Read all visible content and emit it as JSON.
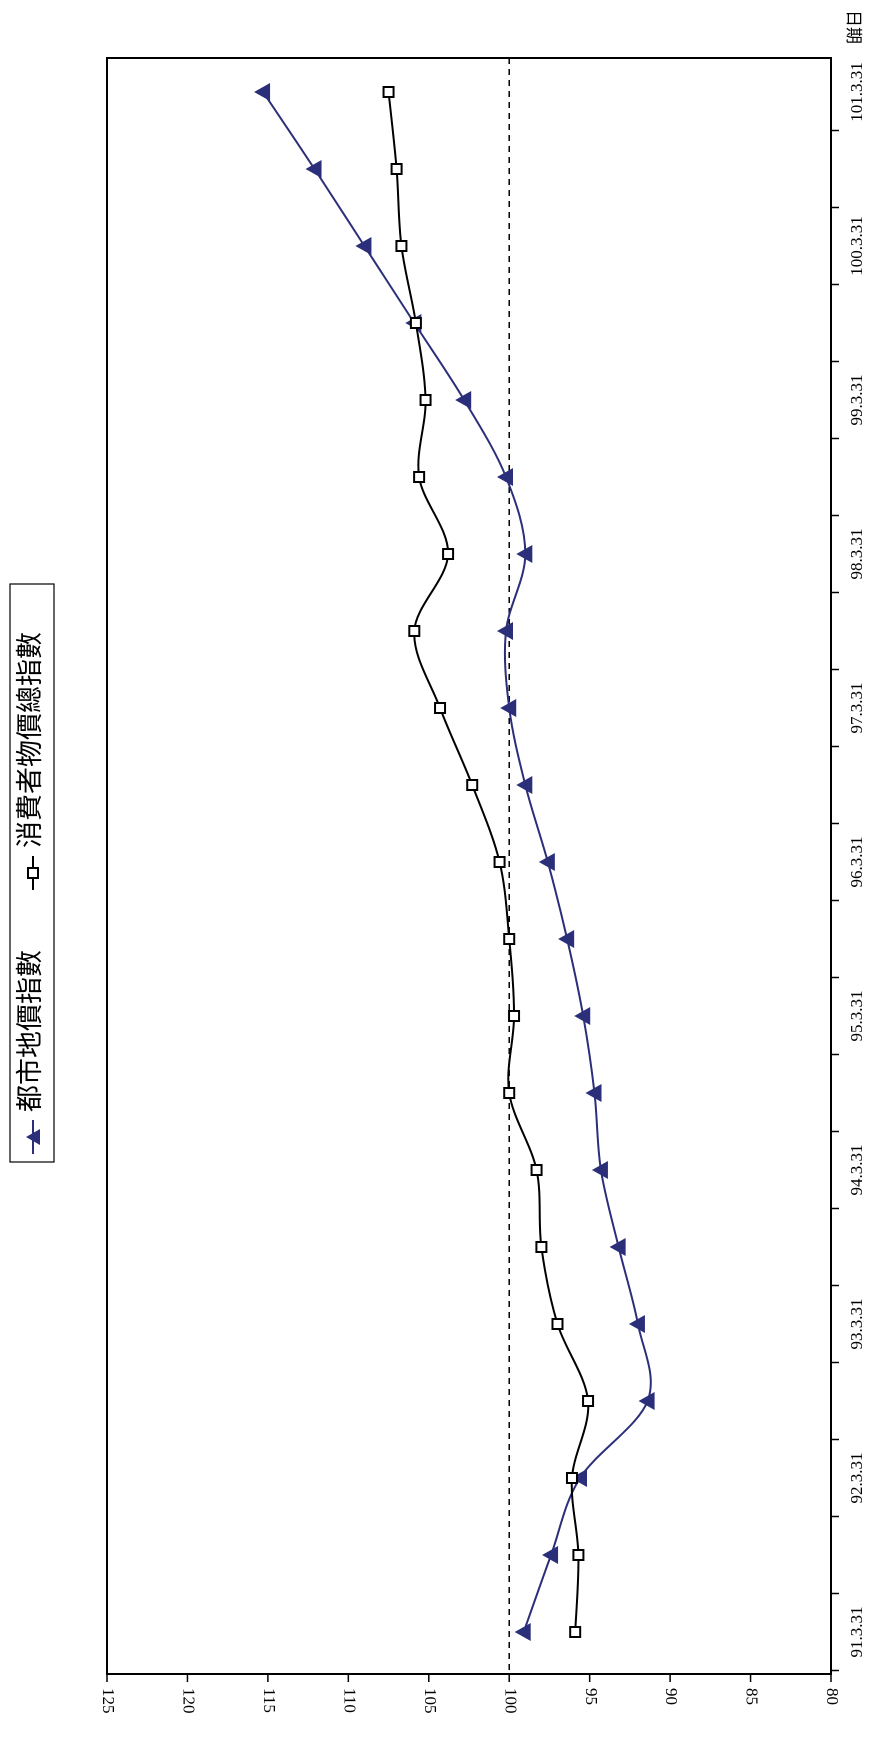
{
  "chart_data": {
    "type": "line",
    "title": "",
    "xlabel": "日期",
    "ylabel": "",
    "ylim": [
      80,
      125
    ],
    "yticks": [
      80,
      85,
      90,
      95,
      100,
      105,
      110,
      115,
      120,
      125
    ],
    "x_tick_labels": [
      "91.3.31",
      "92.3.31",
      "93.3.31",
      "94.3.31",
      "95.3.31",
      "96.3.31",
      "97.3.31",
      "98.3.31",
      "99.3.31",
      "100.3.31",
      "101.3.31"
    ],
    "x_points": [
      "91.3.31",
      "91.9.30",
      "92.3.31",
      "92.9.30",
      "93.3.31",
      "93.9.30",
      "94.3.31",
      "94.9.30",
      "95.3.31",
      "95.9.30",
      "96.3.31",
      "96.9.30",
      "97.3.31",
      "97.9.30",
      "98.3.31",
      "98.9.30",
      "99.3.31",
      "99.9.30",
      "100.3.31",
      "100.9.30",
      "101.3.31"
    ],
    "reference_line": 100,
    "legend_position": "top",
    "grid": false,
    "orientation": "rotated-90",
    "series": [
      {
        "name": "都市地價指數",
        "marker": "triangle",
        "color": "#2b2f7a",
        "values": [
          99.1,
          97.4,
          95.6,
          91.4,
          92.0,
          93.2,
          94.3,
          94.7,
          95.4,
          96.4,
          97.6,
          99.0,
          100.0,
          100.2,
          99.0,
          100.2,
          102.8,
          105.9,
          109.0,
          112.1,
          115.3
        ]
      },
      {
        "name": "消費者物價總指數",
        "marker": "square",
        "color": "#000000",
        "values": [
          95.9,
          95.7,
          96.1,
          95.1,
          97.0,
          98.0,
          98.3,
          100.0,
          99.7,
          100.0,
          100.6,
          102.3,
          104.3,
          105.9,
          103.8,
          105.6,
          105.2,
          105.8,
          106.7,
          107.0,
          107.5
        ]
      }
    ]
  }
}
